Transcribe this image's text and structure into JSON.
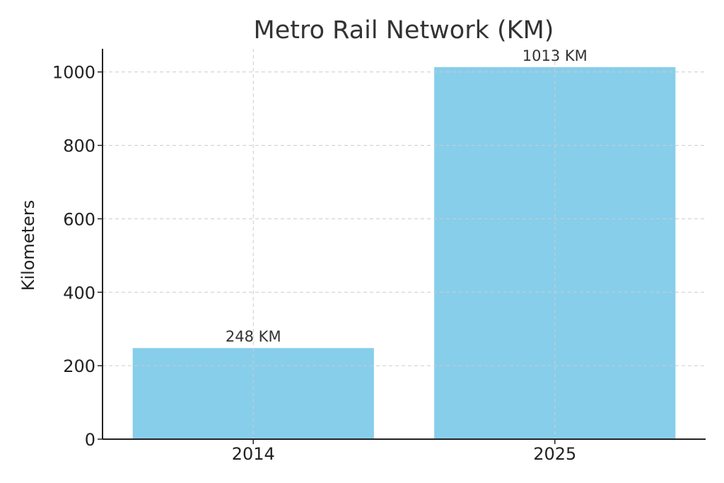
{
  "chart_data": {
    "type": "bar",
    "title": "Metro Rail Network (KM)",
    "xlabel": "",
    "ylabel": "Kilometers",
    "categories": [
      "2014",
      "2025"
    ],
    "values": [
      248,
      1013
    ],
    "data_labels": [
      "248 KM",
      "1013 KM"
    ],
    "yticks": [
      0,
      200,
      400,
      600,
      800,
      1000
    ],
    "ylim": [
      0,
      1063
    ],
    "grid": true,
    "bar_color": "#87ceeb"
  }
}
